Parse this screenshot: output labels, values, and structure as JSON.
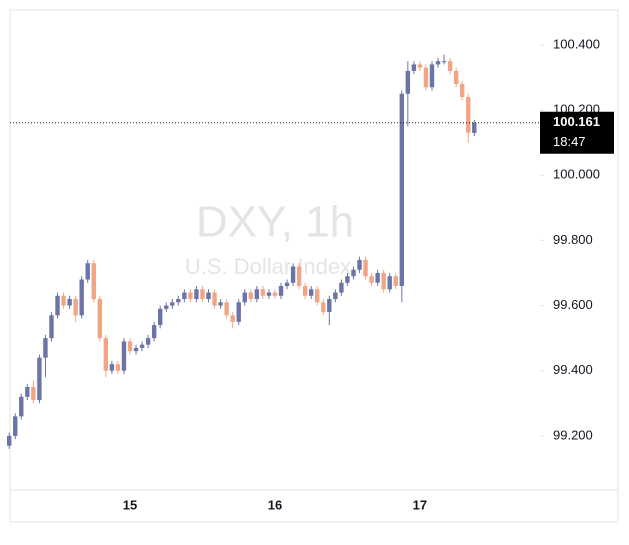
{
  "chart_data": {
    "type": "candlestick",
    "title": "DXY, 1h",
    "subtitle": "U.S. Dollar Index",
    "categories": [
      null,
      null,
      null,
      null,
      null,
      null,
      null,
      null,
      null,
      null,
      null,
      null,
      null,
      null,
      null,
      null,
      null,
      null,
      null,
      null,
      "15",
      null,
      null,
      null,
      null,
      null,
      null,
      null,
      null,
      null,
      null,
      null,
      null,
      null,
      null,
      null,
      null,
      null,
      null,
      null,
      null,
      null,
      null,
      null,
      "16",
      null,
      null,
      null,
      null,
      null,
      null,
      null,
      null,
      null,
      null,
      null,
      null,
      null,
      null,
      null,
      null,
      null,
      null,
      null,
      null,
      null,
      null,
      null,
      "17",
      null,
      null,
      null,
      null,
      null,
      null,
      null,
      null,
      null
    ],
    "open": [
      99.17,
      99.2,
      99.26,
      99.32,
      99.35,
      99.31,
      99.44,
      99.5,
      99.57,
      99.63,
      99.6,
      99.62,
      99.57,
      99.68,
      99.73,
      99.62,
      99.5,
      99.4,
      99.42,
      99.4,
      99.49,
      99.46,
      99.47,
      99.48,
      99.5,
      99.54,
      99.59,
      99.6,
      99.61,
      99.62,
      99.64,
      99.62,
      99.65,
      99.62,
      99.64,
      99.6,
      99.61,
      99.57,
      99.55,
      99.61,
      99.64,
      99.62,
      99.65,
      99.63,
      99.64,
      99.63,
      99.66,
      99.67,
      99.72,
      99.66,
      99.63,
      99.65,
      99.61,
      99.58,
      99.62,
      99.64,
      99.67,
      99.69,
      99.71,
      99.74,
      99.69,
      99.67,
      99.7,
      99.65,
      99.69,
      99.66,
      100.25,
      100.32,
      100.34,
      100.33,
      100.27,
      100.34,
      100.35,
      100.35,
      100.32,
      100.28,
      100.24,
      100.13
    ],
    "high": [
      99.21,
      99.27,
      99.33,
      99.36,
      99.37,
      99.45,
      99.51,
      99.58,
      99.64,
      99.64,
      99.63,
      99.63,
      99.69,
      99.74,
      99.74,
      99.63,
      99.51,
      99.43,
      99.43,
      99.5,
      99.5,
      99.48,
      99.49,
      99.51,
      99.55,
      99.6,
      99.61,
      99.62,
      99.63,
      99.65,
      99.65,
      99.66,
      99.66,
      99.65,
      99.65,
      99.62,
      99.62,
      99.58,
      99.62,
      99.65,
      99.65,
      99.66,
      99.66,
      99.65,
      99.65,
      99.67,
      99.68,
      99.73,
      99.73,
      99.67,
      99.66,
      99.66,
      99.62,
      99.63,
      99.65,
      99.68,
      99.7,
      99.72,
      99.75,
      99.75,
      99.7,
      99.71,
      99.71,
      99.7,
      99.7,
      100.26,
      100.35,
      100.35,
      100.35,
      100.34,
      100.35,
      100.36,
      100.37,
      100.36,
      100.33,
      100.29,
      100.25,
      100.17
    ],
    "low": [
      99.16,
      99.19,
      99.25,
      99.31,
      99.3,
      99.3,
      99.38,
      99.49,
      99.56,
      99.59,
      99.59,
      99.55,
      99.56,
      99.67,
      99.61,
      99.49,
      99.38,
      99.39,
      99.39,
      99.39,
      99.45,
      99.45,
      99.46,
      99.47,
      99.49,
      99.53,
      99.58,
      99.59,
      99.6,
      99.61,
      99.61,
      99.61,
      99.61,
      99.61,
      99.59,
      99.59,
      99.56,
      99.53,
      99.54,
      99.6,
      99.61,
      99.61,
      99.62,
      99.62,
      99.62,
      99.62,
      99.65,
      99.66,
      99.65,
      99.62,
      99.62,
      99.6,
      99.57,
      99.54,
      99.61,
      99.63,
      99.66,
      99.68,
      99.7,
      99.68,
      99.66,
      99.66,
      99.64,
      99.64,
      99.65,
      99.61,
      100.15,
      100.31,
      100.32,
      100.26,
      100.26,
      100.33,
      100.34,
      100.31,
      100.27,
      100.23,
      100.1,
      100.12
    ],
    "close": [
      99.2,
      99.26,
      99.32,
      99.35,
      99.31,
      99.44,
      99.5,
      99.57,
      99.63,
      99.6,
      99.62,
      99.57,
      99.68,
      99.73,
      99.62,
      99.5,
      99.4,
      99.42,
      99.4,
      99.49,
      99.46,
      99.47,
      99.48,
      99.5,
      99.54,
      99.59,
      99.6,
      99.61,
      99.62,
      99.64,
      99.62,
      99.65,
      99.62,
      99.64,
      99.6,
      99.61,
      99.57,
      99.55,
      99.61,
      99.64,
      99.62,
      99.65,
      99.63,
      99.64,
      99.63,
      99.66,
      99.67,
      99.72,
      99.66,
      99.63,
      99.65,
      99.61,
      99.58,
      99.62,
      99.64,
      99.67,
      99.69,
      99.71,
      99.74,
      99.69,
      99.67,
      99.7,
      99.65,
      99.69,
      99.66,
      100.25,
      100.32,
      100.34,
      100.33,
      100.27,
      100.34,
      100.35,
      100.35,
      100.32,
      100.28,
      100.24,
      100.13,
      100.161
    ],
    "up_color": "#6a74a6",
    "down_color": "#f2a584",
    "last_price": 100.161,
    "countdown": "18:47",
    "ylim": [
      99.034,
      100.507
    ],
    "yticks": [
      {
        "value": 99.2,
        "label": "99.200"
      },
      {
        "value": 99.4,
        "label": "99.400"
      },
      {
        "value": 99.6,
        "label": "99.600"
      },
      {
        "value": 99.8,
        "label": "99.800"
      },
      {
        "value": 100,
        "label": "100.000"
      },
      {
        "value": 100.2,
        "label": "100.200"
      },
      {
        "value": 100.4,
        "label": "100.400"
      }
    ]
  }
}
